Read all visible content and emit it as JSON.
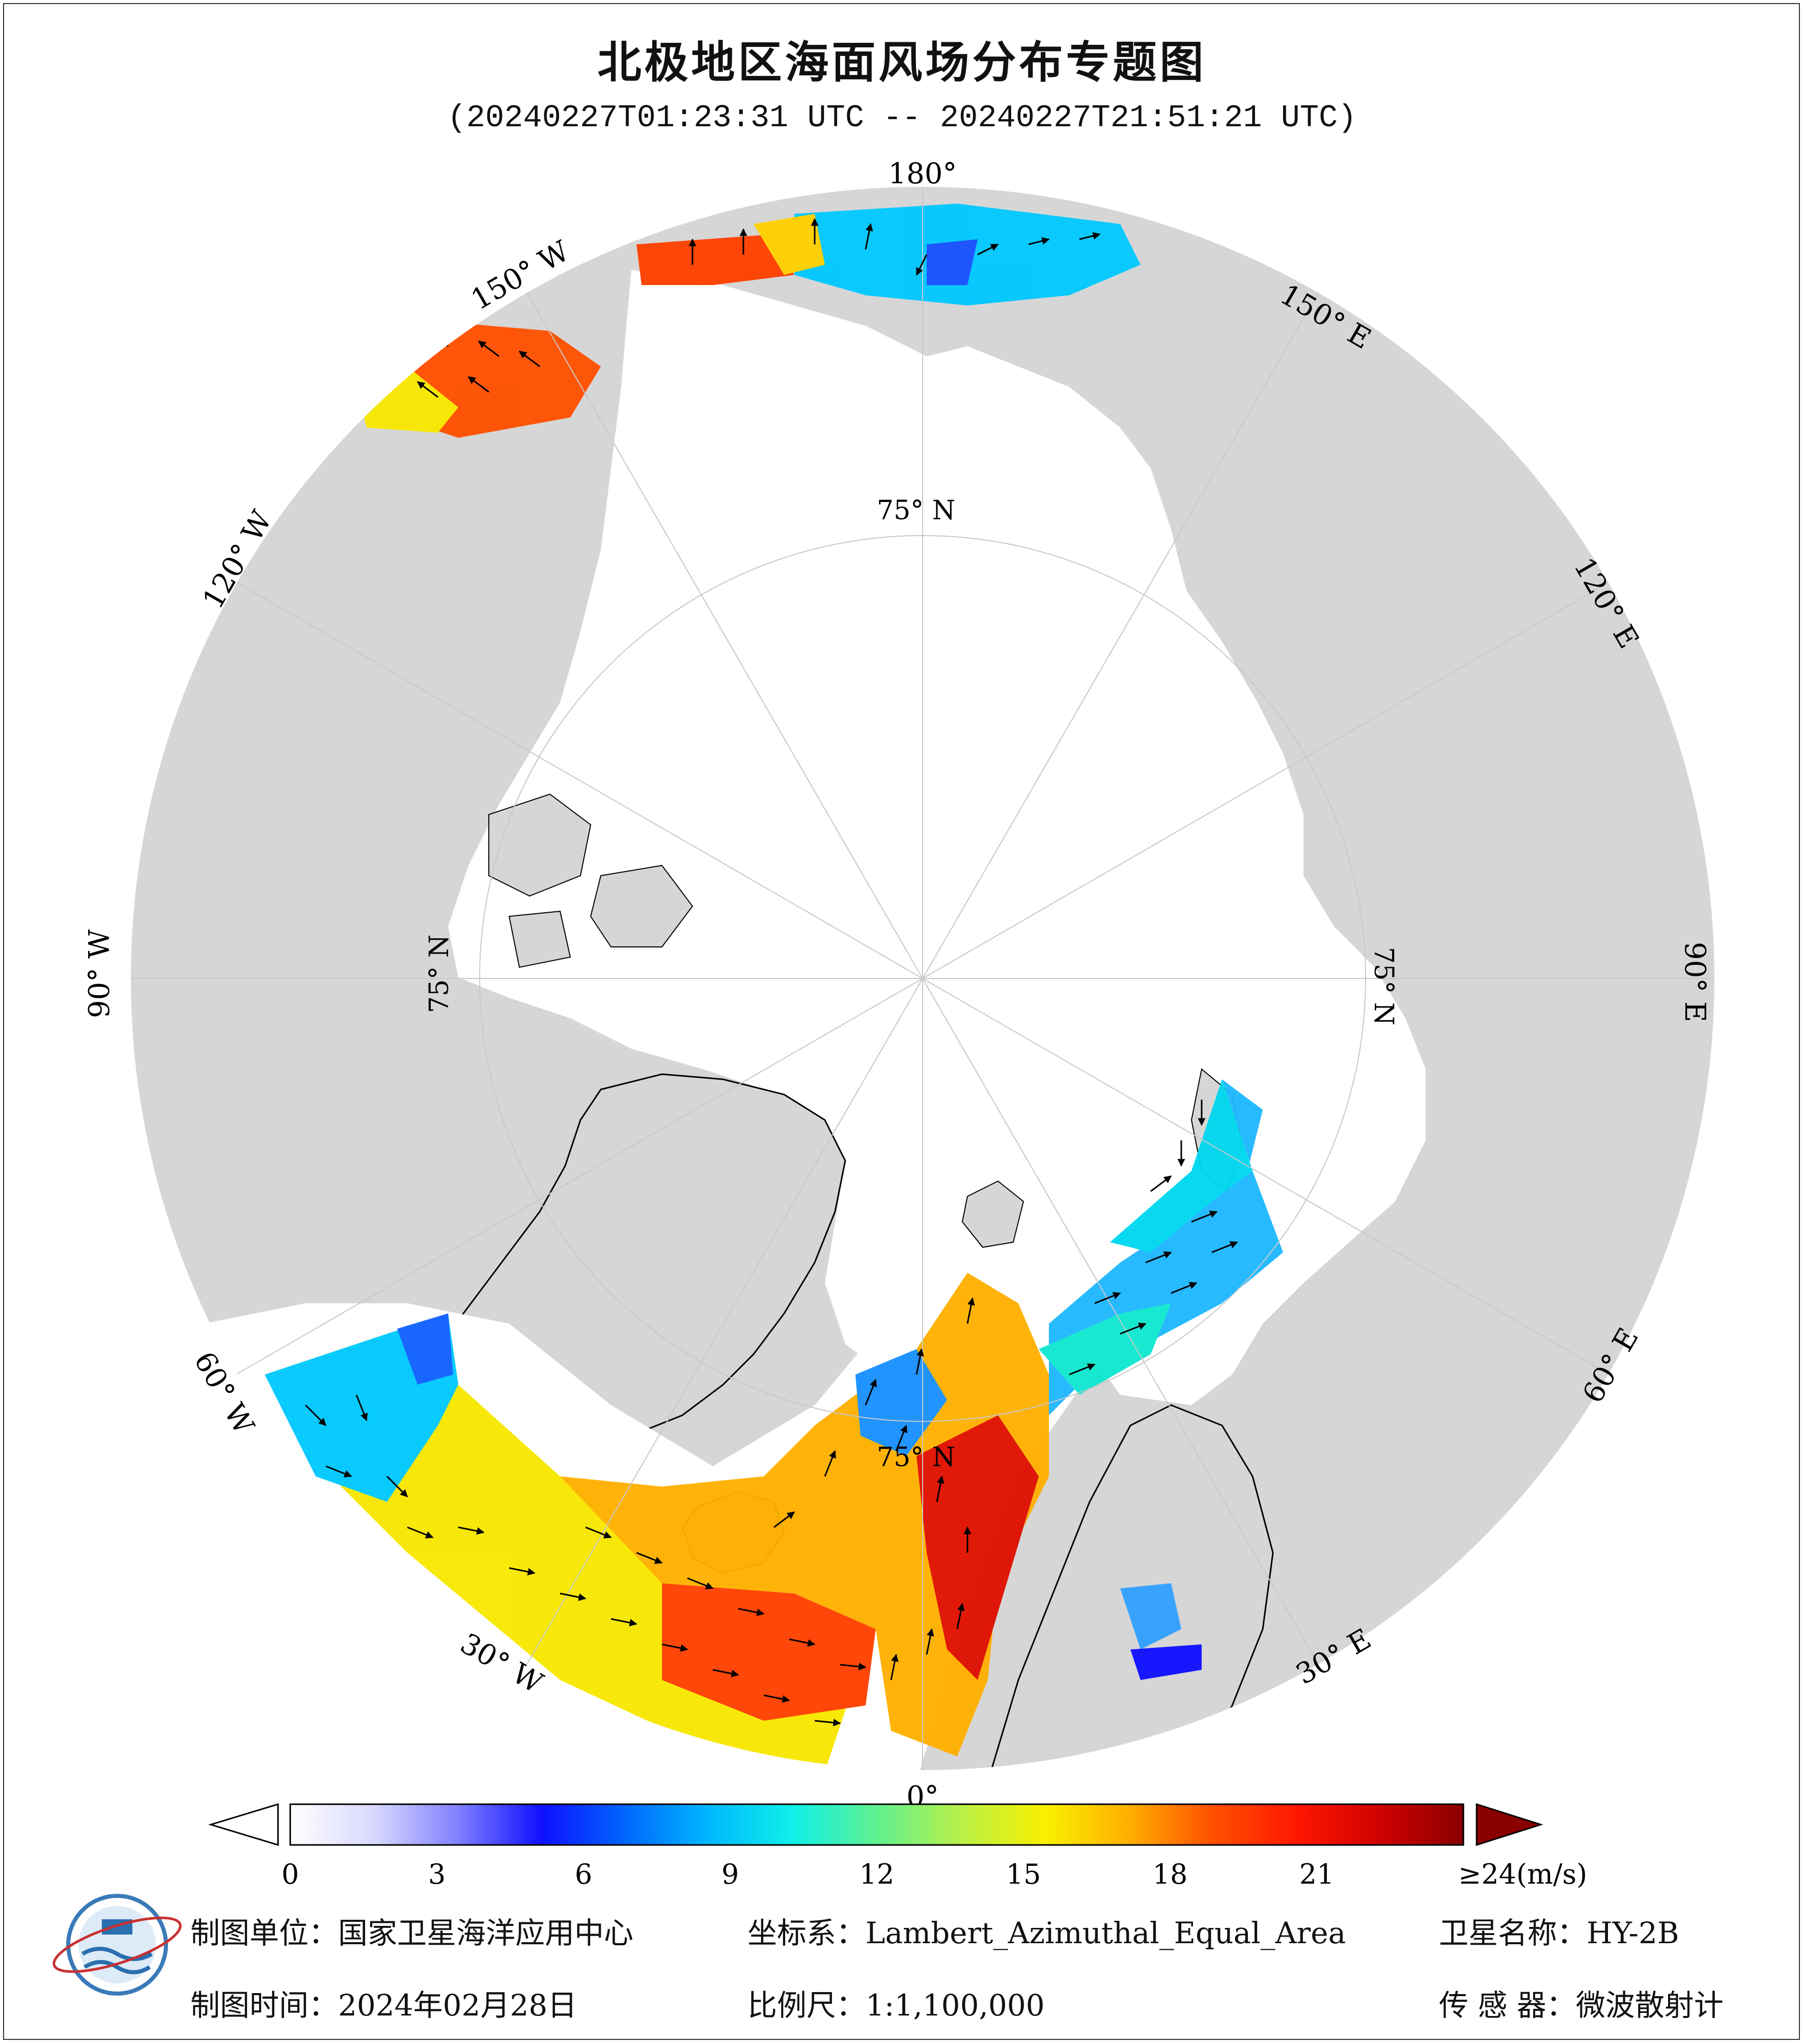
{
  "title": "北极地区海面风场分布专题图",
  "subtitle": "(20240227T01:23:31 UTC -- 20240227T21:51:21 UTC)",
  "map": {
    "lon_labels": [
      "180°",
      "150° E",
      "120° E",
      "90° E",
      "60° E",
      "30° E",
      "0°",
      "30° W",
      "60° W",
      "90° W",
      "120° W",
      "150° W"
    ],
    "lat_labels": [
      "75° N",
      "75° N",
      "75° N",
      "75° N"
    ],
    "colors": {
      "land": "#d6d6d6",
      "ocean_ice": "#ffffff",
      "grid": "#bfbfbf"
    }
  },
  "colorbar": {
    "ticks": [
      "0",
      "3",
      "6",
      "9",
      "12",
      "15",
      "18",
      "21",
      "≥24(m/s)"
    ],
    "tick_values": [
      0,
      3,
      6,
      9,
      12,
      15,
      18,
      21,
      24
    ],
    "range": [
      0,
      24
    ],
    "stops": [
      "#ffffff",
      "#d8d8ff",
      "#8080ff",
      "#1010ff",
      "#0066ff",
      "#00b8ff",
      "#10f0e8",
      "#60f090",
      "#b8f048",
      "#f8f000",
      "#ffb000",
      "#ff5000",
      "#ff1800",
      "#d00000",
      "#8a0000"
    ]
  },
  "footer": {
    "unit": "制图单位：国家卫星海洋应用中心",
    "time": "制图时间：2024年02月28日",
    "coords": "坐标系：Lambert_Azimuthal_Equal_Area",
    "scale": "比例尺：1:1,100,000",
    "satellite": "卫星名称：HY-2B",
    "sensor": "传  感  器：微波散射计"
  }
}
